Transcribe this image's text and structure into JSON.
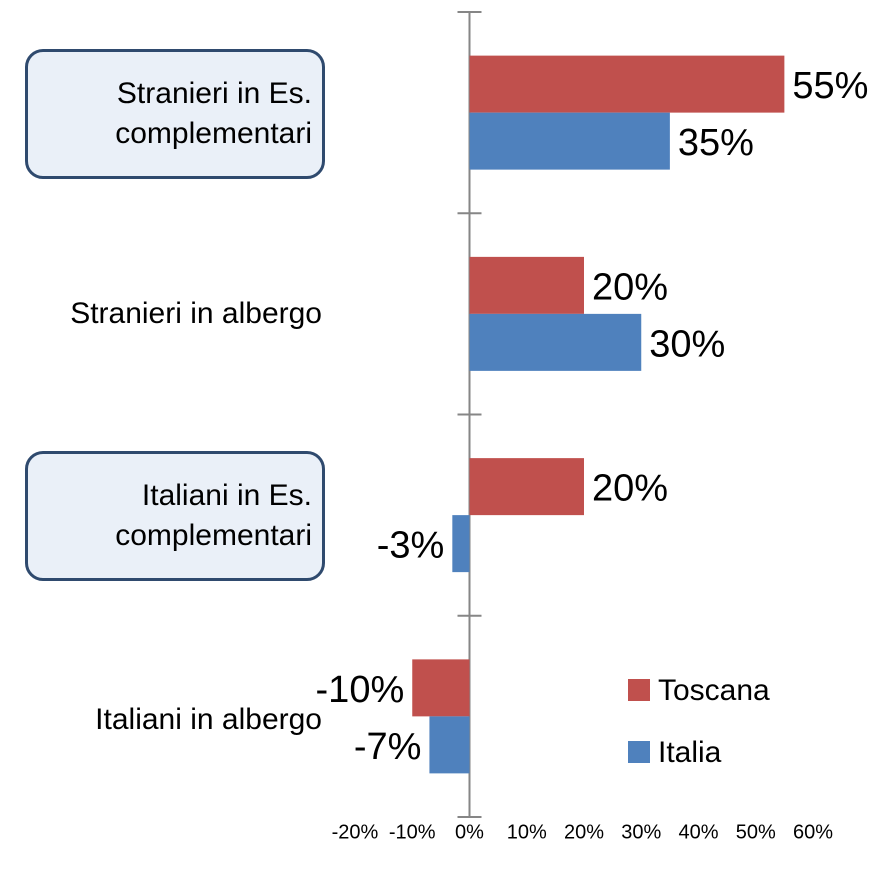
{
  "chart_data": {
    "type": "barh",
    "categories": [
      "Stranieri in Es. complementari",
      "Stranieri in albergo",
      "Italiani in Es. complementari",
      "Italiani in albergo"
    ],
    "series": [
      {
        "name": "Toscana",
        "color": "#c0504d",
        "values": [
          55,
          20,
          20,
          -10
        ],
        "value_labels": [
          "55%",
          "20%",
          "20%",
          "-10%"
        ]
      },
      {
        "name": "Italia",
        "color": "#4f81bd",
        "values": [
          35,
          30,
          -3,
          -7
        ],
        "value_labels": [
          "35%",
          "30%",
          "-3%",
          "-7%"
        ]
      }
    ],
    "xlim": [
      -20,
      60
    ],
    "xticks": [
      {
        "value": -20,
        "label": "-20%"
      },
      {
        "value": -10,
        "label": "-10%"
      },
      {
        "value": 0,
        "label": "0%"
      },
      {
        "value": 10,
        "label": "10%"
      },
      {
        "value": 20,
        "label": "20%"
      },
      {
        "value": 30,
        "label": "30%"
      },
      {
        "value": 40,
        "label": "40%"
      },
      {
        "value": 50,
        "label": "50%"
      },
      {
        "value": 60,
        "label": "60%"
      }
    ],
    "grid": false,
    "legend": "lower right"
  }
}
